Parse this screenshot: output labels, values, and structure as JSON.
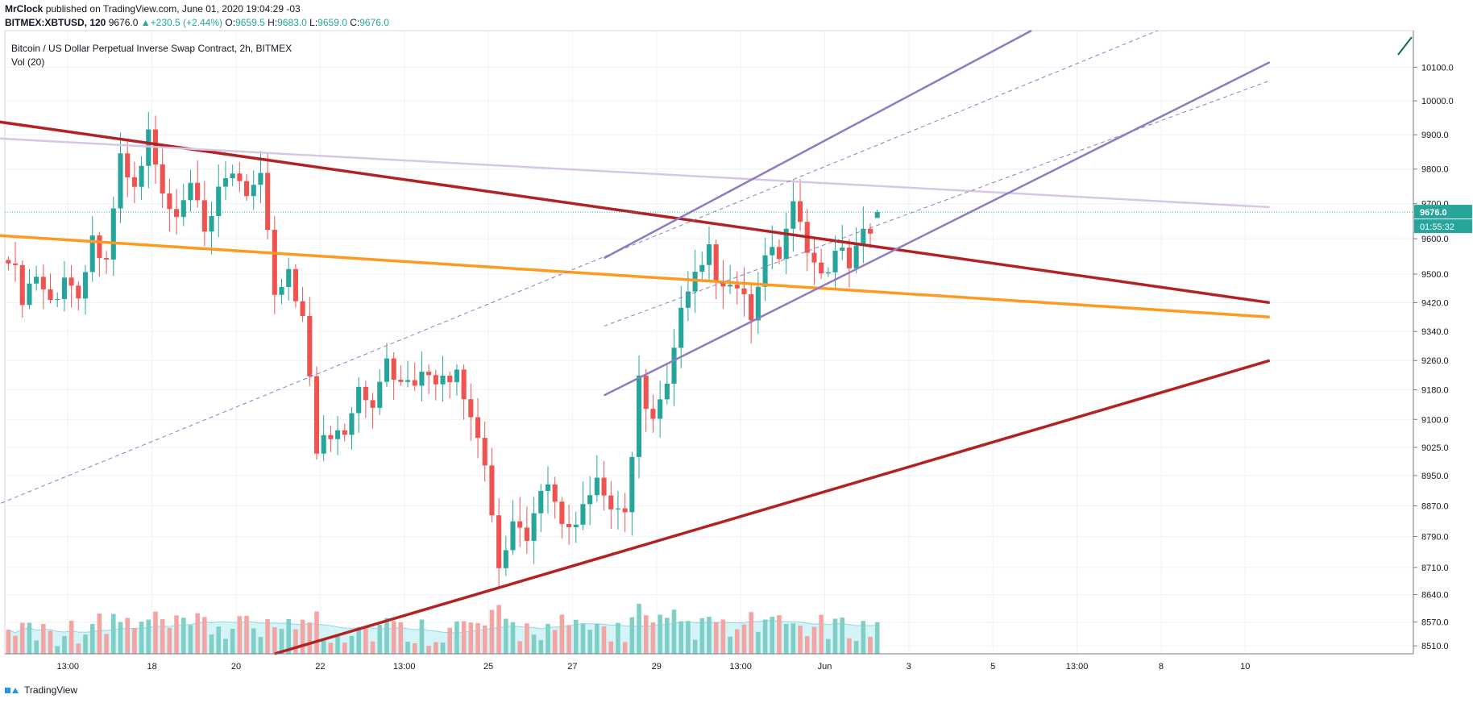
{
  "header": {
    "publisher": "MrClock",
    "published_text": "published on TradingView.com, June 01, 2020 19:04:29 -03",
    "symbol": "BITMEX:XBTUSD, 120",
    "last": "9676.0",
    "change_arrow": "▲",
    "change": "+230.5 (+2.44%)",
    "o_label": "O:",
    "o_value": "9659.5",
    "h_label": "H:",
    "h_value": "9683.0",
    "l_label": "L:",
    "l_value": "9659.0",
    "c_label": "C:",
    "c_value": "9676.0"
  },
  "pane": {
    "title": "Bitcoin / US Dollar Perpetual Inverse Swap Contract, 2h, BITMEX",
    "volume_label": "Vol (20)"
  },
  "footer": {
    "brand": "TradingView"
  },
  "colors": {
    "up": "#26a69a",
    "down": "#ef5350",
    "vol_up": "#7fcfc6",
    "vol_down": "#f4a5a3",
    "grid": "#eef1f4",
    "red_line": "#b22222",
    "orange_line": "#ff9a1f",
    "purple_line": "#8e7cc3",
    "lilac_line": "#d7c6e6",
    "dash_line": "#8e7cc3",
    "price_tag": "#26a69a"
  },
  "chart_data": {
    "type": "candlestick",
    "symbol": "BITMEX:XBTUSD",
    "interval": "2h",
    "y_axis_type": "log",
    "ylim": [
      8490,
      10210
    ],
    "y_ticks": [
      10100.0,
      10000.0,
      9900.0,
      9800.0,
      9700.0,
      9600.0,
      9500.0,
      9420.0,
      9340.0,
      9260.0,
      9180.0,
      9100.0,
      9025.0,
      8950.0,
      8870.0,
      8790.0,
      8710.0,
      8640.0,
      8570.0,
      8510.0
    ],
    "y_tick_labels": [
      "10100.0",
      "10000.0",
      "9900.0",
      "9800.0",
      "9700.0",
      "9600.0",
      "9500.0",
      "9420.0",
      "9340.0",
      "9260.0",
      "9180.0",
      "9100.0",
      "9025.0",
      "8950.0",
      "8870.0",
      "8790.0",
      "8710.0",
      "8640.0",
      "8570.0",
      "8510.0"
    ],
    "bar_range": [
      0,
      201
    ],
    "x_ticks": [
      {
        "bar": 8.5,
        "label": "13:00"
      },
      {
        "bar": 20.5,
        "label": "18"
      },
      {
        "bar": 32.5,
        "label": "20"
      },
      {
        "bar": 44.5,
        "label": "22"
      },
      {
        "bar": 56.5,
        "label": "13:00"
      },
      {
        "bar": 68.5,
        "label": "25"
      },
      {
        "bar": 80.5,
        "label": "27"
      },
      {
        "bar": 92.5,
        "label": "29"
      },
      {
        "bar": 104.5,
        "label": "13:00"
      },
      {
        "bar": 116.5,
        "label": "Jun"
      },
      {
        "bar": 128.5,
        "label": "3"
      },
      {
        "bar": 140.5,
        "label": "5"
      },
      {
        "bar": 152.5,
        "label": "13:00"
      },
      {
        "bar": 164.5,
        "label": "8"
      },
      {
        "bar": 176.5,
        "label": "10"
      }
    ],
    "anchors": [
      [
        0,
        9560
      ],
      [
        2,
        9440
      ],
      [
        4,
        9500
      ],
      [
        6,
        9420
      ],
      [
        8,
        9480
      ],
      [
        10,
        9460
      ],
      [
        12,
        9590
      ],
      [
        14,
        9560
      ],
      [
        16,
        9820
      ],
      [
        18,
        9740
      ],
      [
        20,
        9900
      ],
      [
        22,
        9720
      ],
      [
        24,
        9640
      ],
      [
        26,
        9760
      ],
      [
        28,
        9600
      ],
      [
        30,
        9720
      ],
      [
        32,
        9800
      ],
      [
        34,
        9740
      ],
      [
        36,
        9760
      ],
      [
        38,
        9440
      ],
      [
        40,
        9520
      ],
      [
        42,
        9380
      ],
      [
        44,
        9020
      ],
      [
        46,
        9060
      ],
      [
        48,
        9080
      ],
      [
        50,
        9200
      ],
      [
        52,
        9150
      ],
      [
        54,
        9260
      ],
      [
        56,
        9200
      ],
      [
        58,
        9180
      ],
      [
        60,
        9240
      ],
      [
        62,
        9200
      ],
      [
        64,
        9260
      ],
      [
        66,
        9100
      ],
      [
        68,
        8970
      ],
      [
        70,
        8700
      ],
      [
        72,
        8810
      ],
      [
        74,
        8760
      ],
      [
        76,
        8930
      ],
      [
        78,
        8900
      ],
      [
        80,
        8800
      ],
      [
        82,
        8850
      ],
      [
        84,
        8920
      ],
      [
        86,
        8860
      ],
      [
        88,
        8850
      ],
      [
        90,
        9200
      ],
      [
        92,
        9100
      ],
      [
        94,
        9180
      ],
      [
        96,
        9380
      ],
      [
        98,
        9480
      ],
      [
        100,
        9570
      ],
      [
        102,
        9440
      ],
      [
        104,
        9460
      ],
      [
        106,
        9380
      ],
      [
        108,
        9540
      ],
      [
        110,
        9560
      ],
      [
        112,
        9680
      ],
      [
        114,
        9560
      ],
      [
        116,
        9500
      ],
      [
        118,
        9560
      ],
      [
        120,
        9530
      ],
      [
        122,
        9600
      ],
      [
        124,
        9676
      ]
    ],
    "last_price": 9676.0,
    "last_price_label": "9676.0",
    "countdown_label": "01:55:32",
    "volume_avg_period": 20,
    "trendlines": [
      {
        "name": "red-resistance",
        "style": "solid",
        "from": [
          -2,
          9940
        ],
        "to": [
          180,
          9420
        ]
      },
      {
        "name": "orange-support",
        "style": "solid",
        "from": [
          -2,
          9610
        ],
        "to": [
          180,
          9380
        ]
      },
      {
        "name": "red-rising-support",
        "style": "solid",
        "from": [
          38,
          8490
        ],
        "to": [
          180,
          9260
        ]
      },
      {
        "name": "lilac-resistance",
        "style": "solid",
        "from": [
          -2,
          9890
        ],
        "to": [
          180,
          9690
        ]
      },
      {
        "name": "channel-upper",
        "style": "solid",
        "from": [
          85,
          9545
        ],
        "to": [
          146,
          10210
        ]
      },
      {
        "name": "channel-lower",
        "style": "solid",
        "from": [
          85,
          9165
        ],
        "to": [
          180,
          10115
        ]
      },
      {
        "name": "channel-mid-dashed",
        "style": "dashed",
        "from": [
          85,
          9355
        ],
        "to": [
          180,
          10060
        ]
      },
      {
        "name": "long-dashed",
        "style": "dashed",
        "from": [
          -2,
          8870
        ],
        "to": [
          164,
          10210
        ]
      }
    ]
  }
}
